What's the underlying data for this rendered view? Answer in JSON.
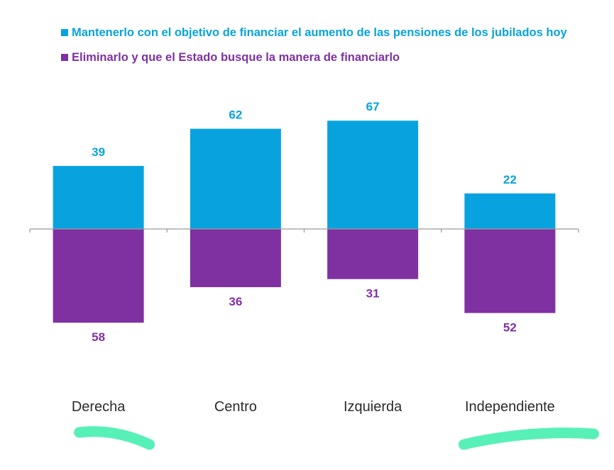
{
  "colors": {
    "positive": "#08a3de",
    "negative": "#7f31a2",
    "axis": "#9a9a9a",
    "highlight": "#45f0b0"
  },
  "legend": {
    "positive_label": "Mantenerlo con el objetivo de financiar el aumento de las pensiones de los jubilados hoy",
    "negative_label": "Eliminarlo y que el Estado busque la manera de financiarlo"
  },
  "chart_data": {
    "type": "bar",
    "stacking": "diverging",
    "categories": [
      "Derecha",
      "Centro",
      "Izquierda",
      "Independiente"
    ],
    "series": [
      {
        "name": "Mantenerlo con el objetivo de financiar el aumento de las pensiones de los jubilados hoy",
        "values": [
          39,
          62,
          67,
          22
        ],
        "direction": "up"
      },
      {
        "name": "Eliminarlo y que el Estado busque la manera de financiarlo",
        "values": [
          58,
          36,
          31,
          52
        ],
        "direction": "down"
      }
    ],
    "highlighted_categories": [
      "Derecha",
      "Independiente"
    ],
    "grid": false,
    "legend_position": "top-left"
  }
}
